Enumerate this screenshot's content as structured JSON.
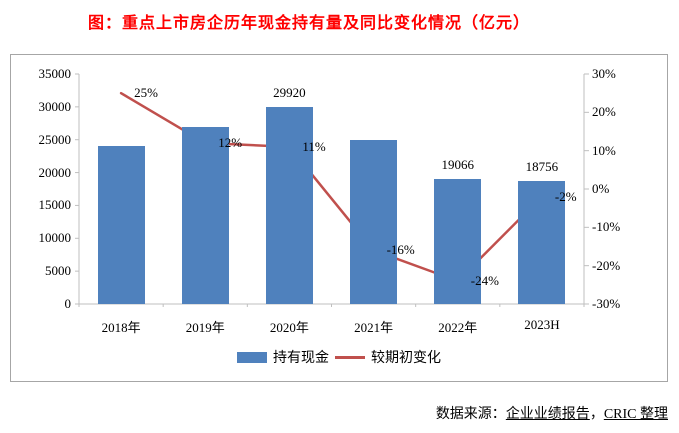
{
  "title": {
    "text": "图：重点上市房企历年现金持有量及同比变化情况（亿元）",
    "color": "#ff0000"
  },
  "footer": {
    "prefix": "数据来源：",
    "source": "企业业绩报告",
    "separator": "，",
    "credit": "CRIC 整理"
  },
  "chart_data": {
    "type": "bar+line",
    "title": "图：重点上市房企历年现金持有量及同比变化情况（亿元）",
    "categories": [
      "2018年",
      "2019年",
      "2020年",
      "2021年",
      "2022年",
      "2023H"
    ],
    "series": [
      {
        "name": "持有现金",
        "type": "bar",
        "axis": "left",
        "color": "#4f81bd",
        "values": [
          24000,
          27000,
          29920,
          25000,
          19066,
          18756
        ],
        "labels": [
          "",
          "",
          "29920",
          "",
          "19066",
          "18756"
        ]
      },
      {
        "name": "较期初变化",
        "type": "line",
        "axis": "right",
        "color": "#c0504d",
        "values": [
          25,
          12,
          11,
          -16,
          -24,
          -2
        ],
        "labels": [
          "25%",
          "12%",
          "11%",
          "-16%",
          "-24%",
          "-2%"
        ]
      }
    ],
    "left_axis": {
      "min": 0,
      "max": 35000,
      "ticks": [
        "35000",
        "30000",
        "25000",
        "20000",
        "15000",
        "10000",
        "5000",
        "0"
      ]
    },
    "right_axis": {
      "min": -30,
      "max": 30,
      "ticks": [
        "30%",
        "20%",
        "10%",
        "0%",
        "-10%",
        "-20%",
        "-30%"
      ]
    },
    "grid": false,
    "legend_position": "bottom",
    "axis_line_color": "#bfbfbf"
  }
}
